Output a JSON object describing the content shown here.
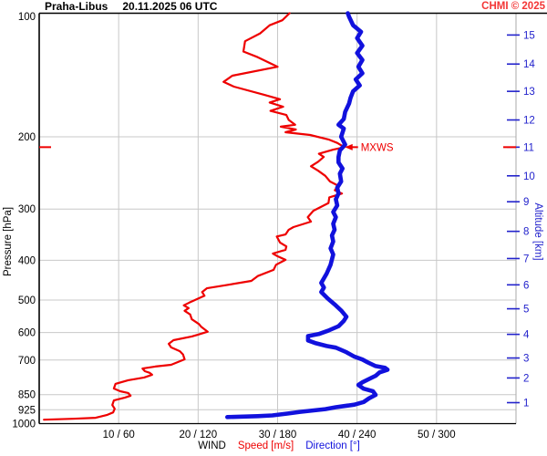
{
  "header": {
    "station": "Praha-Libus",
    "datetime": "20.11.2025 06 UTC",
    "copyright": "CHMI © 2025"
  },
  "axes": {
    "pressure_label": "Pressure [hPa]",
    "altitude_label": "Altitude [km]",
    "wind_label": "WIND",
    "speed_label": "Speed [m/s]",
    "direction_label": "Direction [°]",
    "pressure_ticks": [
      100,
      200,
      300,
      400,
      500,
      600,
      700,
      850,
      925,
      1000
    ],
    "x_tick_labels": [
      "10 / 60",
      "20 / 120",
      "30 / 180",
      "40 / 240",
      "50 / 300"
    ],
    "x_tick_speeds": [
      10,
      20,
      30,
      40,
      50
    ],
    "altitude_ticks": [
      {
        "km": 1,
        "hpa": 889
      },
      {
        "km": 2,
        "hpa": 774
      },
      {
        "km": 3,
        "hpa": 692
      },
      {
        "km": 4,
        "hpa": 606
      },
      {
        "km": 5,
        "hpa": 525
      },
      {
        "km": 6,
        "hpa": 459
      },
      {
        "km": 7,
        "hpa": 396
      },
      {
        "km": 8,
        "hpa": 340
      },
      {
        "km": 9,
        "hpa": 288
      },
      {
        "km": 10,
        "hpa": 249
      },
      {
        "km": 11,
        "hpa": 212
      },
      {
        "km": 12,
        "hpa": 182
      },
      {
        "km": 13,
        "hpa": 155
      },
      {
        "km": 14,
        "hpa": 133
      },
      {
        "km": 15,
        "hpa": 113
      }
    ]
  },
  "colors": {
    "speed": "#ee0000",
    "direction": "#1111dd",
    "grid": "#c8c8c8",
    "frame": "#000000",
    "right_edge": "#aaaaaa",
    "altitude_text": "#2222cc",
    "copyright_red": "#f33636"
  },
  "chart_data": {
    "type": "line",
    "title": "Praha-Libus 20.11.2025 06 UTC",
    "xlabel": "WIND Speed [m/s] / Direction [°]",
    "ylabel": "Pressure [hPa]",
    "y_axis": {
      "scale": "log",
      "pressure_range_hpa": [
        100,
        1000
      ]
    },
    "x_axis": {
      "speed_range_ms": [
        0,
        60
      ],
      "direction_range_deg": [
        0,
        360
      ]
    },
    "legend_position": "bottom",
    "grid": true,
    "mxws": {
      "label": "MXWS",
      "pressure_hpa": 212,
      "speed_ms": 38.4
    },
    "series": [
      {
        "name": "Speed [m/s]",
        "units": "m/s",
        "points_pressure_value": [
          [
            100,
            31.5
          ],
          [
            104,
            30.6
          ],
          [
            107,
            29.0
          ],
          [
            112,
            27.8
          ],
          [
            117,
            25.9
          ],
          [
            124,
            25.7
          ],
          [
            128,
            27.5
          ],
          [
            135,
            30.0
          ],
          [
            142,
            24.3
          ],
          [
            147,
            23.2
          ],
          [
            151,
            24.5
          ],
          [
            158,
            28.3
          ],
          [
            162,
            30.3
          ],
          [
            165,
            29.0
          ],
          [
            169,
            30.7
          ],
          [
            173,
            29.1
          ],
          [
            177,
            31.1
          ],
          [
            182,
            31.4
          ],
          [
            187,
            32.2
          ],
          [
            189,
            30.4
          ],
          [
            192,
            32.3
          ],
          [
            195,
            31.0
          ],
          [
            198,
            34.1
          ],
          [
            203,
            36.4
          ],
          [
            207,
            37.5
          ],
          [
            212,
            38.4
          ],
          [
            215,
            37.0
          ],
          [
            220,
            35.2
          ],
          [
            224,
            35.8
          ],
          [
            230,
            35.1
          ],
          [
            236,
            34.2
          ],
          [
            242,
            35.1
          ],
          [
            249,
            36.0
          ],
          [
            257,
            36.6
          ],
          [
            263,
            37.6
          ],
          [
            270,
            37.2
          ],
          [
            275,
            38.1
          ],
          [
            281,
            36.5
          ],
          [
            290,
            36.4
          ],
          [
            303,
            34.5
          ],
          [
            314,
            33.8
          ],
          [
            322,
            34.2
          ],
          [
            332,
            32.0
          ],
          [
            337,
            31.4
          ],
          [
            346,
            31.0
          ],
          [
            350,
            29.9
          ],
          [
            362,
            30.3
          ],
          [
            370,
            31.1
          ],
          [
            377,
            31.0
          ],
          [
            385,
            29.4
          ],
          [
            391,
            30.0
          ],
          [
            399,
            31.0
          ],
          [
            410,
            29.8
          ],
          [
            422,
            29.5
          ],
          [
            437,
            27.5
          ],
          [
            449,
            26.7
          ],
          [
            460,
            23.5
          ],
          [
            468,
            21.1
          ],
          [
            478,
            20.5
          ],
          [
            488,
            20.8
          ],
          [
            507,
            18.9
          ],
          [
            515,
            18.2
          ],
          [
            523,
            18.8
          ],
          [
            531,
            18.3
          ],
          [
            542,
            19.0
          ],
          [
            557,
            19.2
          ],
          [
            572,
            20.1
          ],
          [
            581,
            20.4
          ],
          [
            597,
            21.2
          ],
          [
            607,
            20.0
          ],
          [
            613,
            19.2
          ],
          [
            626,
            16.9
          ],
          [
            639,
            16.3
          ],
          [
            652,
            16.6
          ],
          [
            666,
            17.7
          ],
          [
            679,
            18.1
          ],
          [
            697,
            18.3
          ],
          [
            719,
            16.6
          ],
          [
            726,
            14.6
          ],
          [
            734,
            13.0
          ],
          [
            745,
            13.3
          ],
          [
            752,
            13.9
          ],
          [
            760,
            14.2
          ],
          [
            772,
            13.2
          ],
          [
            784,
            11.2
          ],
          [
            800,
            9.6
          ],
          [
            821,
            9.4
          ],
          [
            834,
            10.2
          ],
          [
            842,
            11.2
          ],
          [
            855,
            11.5
          ],
          [
            864,
            10.8
          ],
          [
            878,
            9.4
          ],
          [
            901,
            9.2
          ],
          [
            920,
            9.5
          ],
          [
            939,
            9.3
          ],
          [
            953,
            8.5
          ],
          [
            968,
            7.1
          ],
          [
            973,
            4.2
          ],
          [
            978,
            0.6
          ]
        ]
      },
      {
        "name": "Direction [°]",
        "units": "deg",
        "points_pressure_value": [
          [
            100,
            233
          ],
          [
            102,
            234
          ],
          [
            107,
            237
          ],
          [
            111,
            243
          ],
          [
            115,
            240
          ],
          [
            120,
            244
          ],
          [
            125,
            240
          ],
          [
            130,
            244
          ],
          [
            135,
            241
          ],
          [
            140,
            244
          ],
          [
            145,
            239
          ],
          [
            150,
            242
          ],
          [
            155,
            237
          ],
          [
            161,
            235
          ],
          [
            166,
            234
          ],
          [
            174,
            231
          ],
          [
            181,
            230
          ],
          [
            187,
            226
          ],
          [
            191,
            230
          ],
          [
            200,
            228
          ],
          [
            209,
            231
          ],
          [
            216,
            227
          ],
          [
            224,
            226
          ],
          [
            231,
            226
          ],
          [
            239,
            229
          ],
          [
            246,
            227
          ],
          [
            257,
            228
          ],
          [
            266,
            225
          ],
          [
            275,
            226
          ],
          [
            284,
            224
          ],
          [
            294,
            225
          ],
          [
            305,
            222
          ],
          [
            314,
            224
          ],
          [
            326,
            222
          ],
          [
            337,
            223
          ],
          [
            348,
            221
          ],
          [
            360,
            222
          ],
          [
            374,
            220
          ],
          [
            387,
            222
          ],
          [
            410,
            220
          ],
          [
            431,
            217
          ],
          [
            454,
            213
          ],
          [
            466,
            215
          ],
          [
            478,
            213
          ],
          [
            496,
            218
          ],
          [
            512,
            223
          ],
          [
            530,
            228
          ],
          [
            549,
            232
          ],
          [
            562,
            230
          ],
          [
            579,
            226
          ],
          [
            594,
            218
          ],
          [
            605,
            211
          ],
          [
            612,
            203
          ],
          [
            627,
            203
          ],
          [
            637,
            209
          ],
          [
            647,
            217
          ],
          [
            653,
            224
          ],
          [
            670,
            232
          ],
          [
            687,
            238
          ],
          [
            698,
            244
          ],
          [
            709,
            248
          ],
          [
            724,
            254
          ],
          [
            731,
            261
          ],
          [
            739,
            263
          ],
          [
            750,
            257
          ],
          [
            765,
            254
          ],
          [
            773,
            251
          ],
          [
            793,
            244
          ],
          [
            805,
            241
          ],
          [
            822,
            245
          ],
          [
            834,
            252
          ],
          [
            851,
            254
          ],
          [
            868,
            249
          ],
          [
            886,
            245
          ],
          [
            899,
            238
          ],
          [
            912,
            224
          ],
          [
            922,
            216
          ],
          [
            936,
            197
          ],
          [
            945,
            188
          ],
          [
            955,
            176
          ],
          [
            959,
            165
          ],
          [
            964,
            142
          ]
        ]
      }
    ]
  }
}
